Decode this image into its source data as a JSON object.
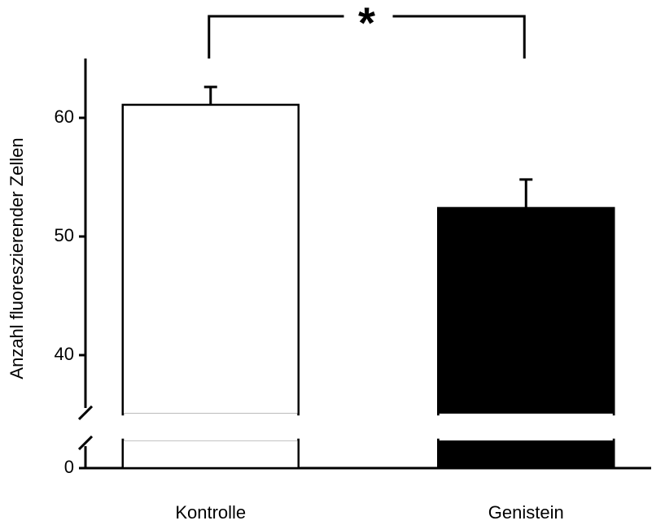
{
  "chart_data": {
    "type": "bar",
    "categories": [
      "Kontrolle",
      "Genistein"
    ],
    "values": [
      61.1,
      52.4
    ],
    "errors": [
      1.5,
      2.4
    ],
    "colors": [
      "#ffffff",
      "#000000"
    ],
    "ylabel": "Anzahl fluoreszierender Zellen",
    "ylim": [
      0,
      65
    ],
    "ybreak": [
      2.4,
      35
    ],
    "yticks": [
      0,
      40,
      50,
      60
    ],
    "annotation": "*",
    "grid": false
  }
}
